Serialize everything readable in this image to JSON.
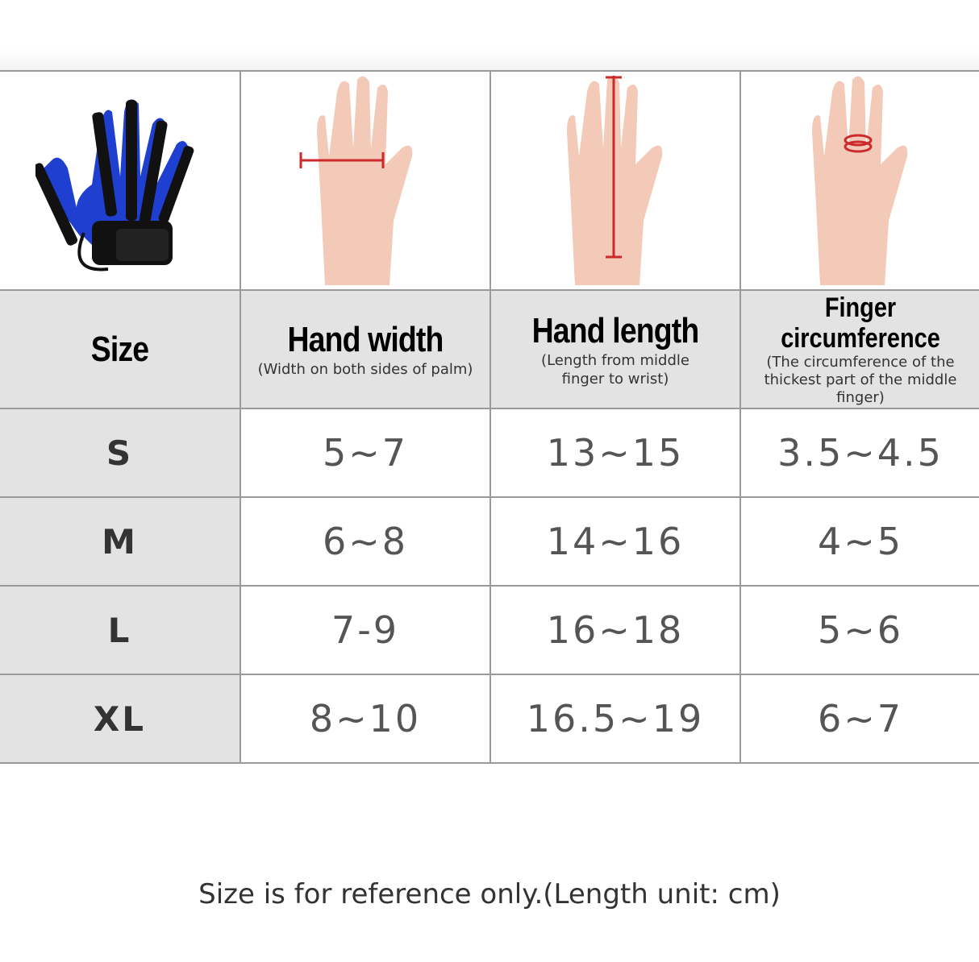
{
  "columns": [
    {
      "title": "Size",
      "subtitle": ""
    },
    {
      "title": "Hand width",
      "subtitle": "(Width on both sides of palm)"
    },
    {
      "title": "Hand length",
      "subtitle": "(Length from middle finger to wrist)"
    },
    {
      "title": "Finger circumference",
      "subtitle": "(The circumference of the thickest part of the middle finger)"
    }
  ],
  "images": {
    "product": "rehabilitation-robot-glove",
    "width": "hand-width-diagram",
    "length": "hand-length-diagram",
    "circumference": "finger-circumference-diagram"
  },
  "rows": [
    {
      "size": "S",
      "hand_width": "5~7",
      "hand_length": "13~15",
      "finger_circumference": "3.5~4.5"
    },
    {
      "size": "M",
      "hand_width": "6~8",
      "hand_length": "14~16",
      "finger_circumference": "4~5"
    },
    {
      "size": "L",
      "hand_width": "7-9",
      "hand_length": "16~18",
      "finger_circumference": "5~6"
    },
    {
      "size": "XL",
      "hand_width": "8~10",
      "hand_length": "16.5~19",
      "finger_circumference": "6~7"
    }
  ],
  "footer": "Size is for reference only.(Length unit: cm)",
  "colors": {
    "glove_blue": "#1f3fd0",
    "measure_red": "#cc2a2a",
    "header_bg": "#e3e3e3",
    "skin": "#f3c9b8"
  }
}
